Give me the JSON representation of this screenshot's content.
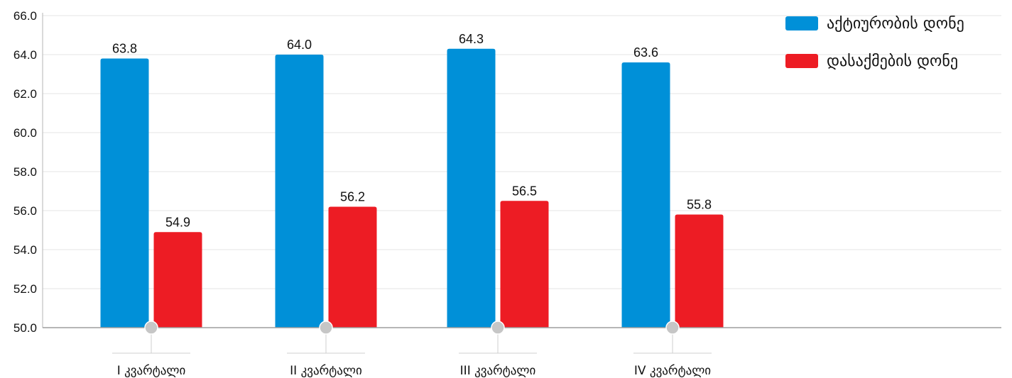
{
  "chart_data": {
    "type": "bar",
    "categories": [
      "I კვარტალი",
      "II კვარტალი",
      "III კვარტალი",
      "IV კვარტალი"
    ],
    "series": [
      {
        "name": "აქტიურობის დონე",
        "color": "#0090d8",
        "values": [
          63.8,
          64.0,
          64.3,
          63.6
        ]
      },
      {
        "name": "დასაქმების დონე",
        "color": "#ed1c24",
        "values": [
          54.9,
          56.2,
          56.5,
          55.8
        ]
      }
    ],
    "ylim": [
      50,
      66
    ],
    "yticks": [
      "50.0",
      "52.0",
      "54.0",
      "56.0",
      "58.0",
      "60.0",
      "62.0",
      "64.0",
      "66.0"
    ],
    "grid": true,
    "legend": "top-right"
  }
}
